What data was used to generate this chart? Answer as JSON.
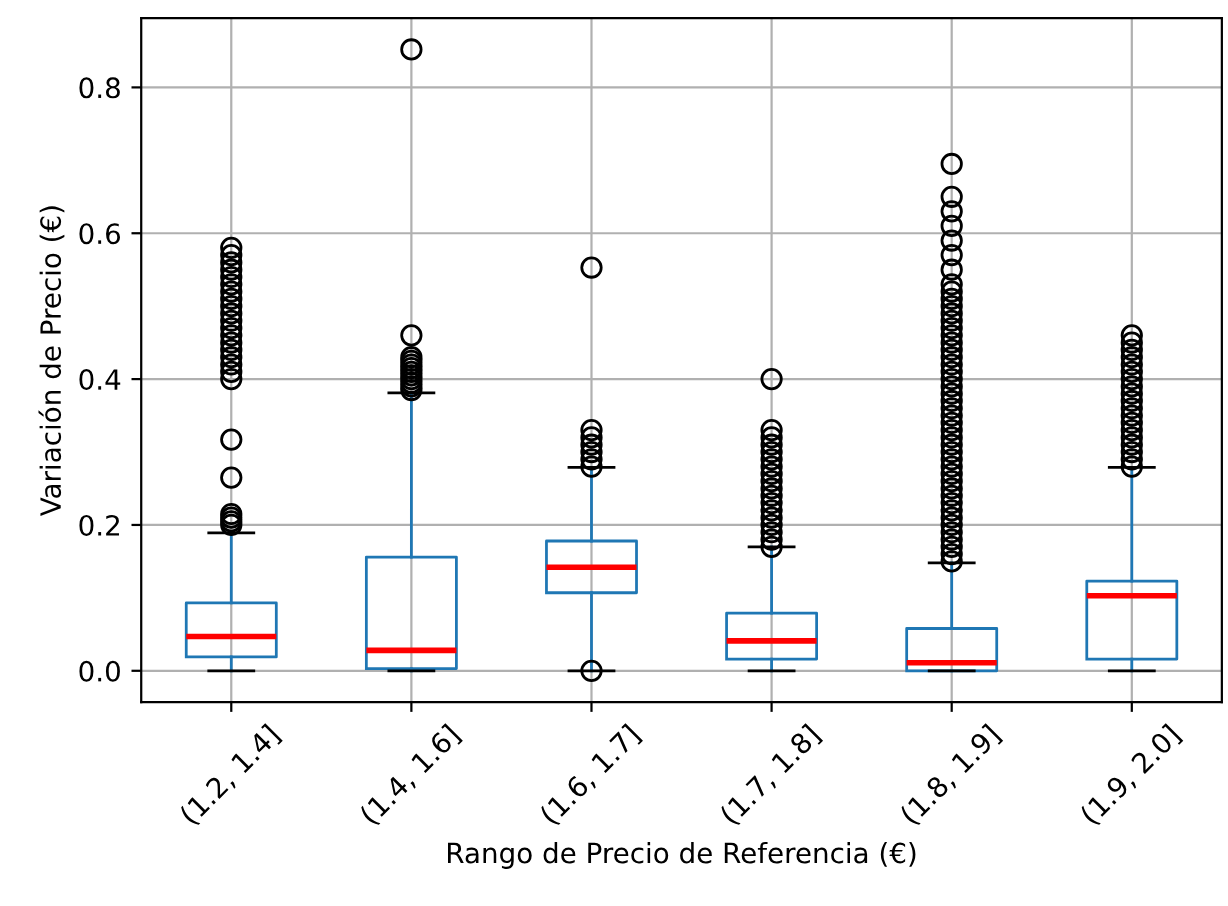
{
  "chart_data": {
    "type": "box",
    "xlabel": "Rango de Precio de Referencia (€)",
    "ylabel": "Variación de Precio (€)",
    "categories": [
      "(1.2, 1.4]",
      "(1.4, 1.6]",
      "(1.6, 1.7]",
      "(1.7, 1.8]",
      "(1.8, 1.9]",
      "(1.9, 2.0]"
    ],
    "ylim": [
      -0.043,
      0.895
    ],
    "yticks": [
      {
        "value": 0,
        "label": "0.0"
      },
      {
        "value": 0.2,
        "label": "0.2"
      },
      {
        "value": 0.4,
        "label": "0.4"
      },
      {
        "value": 0.6,
        "label": "0.6"
      },
      {
        "value": 0.8,
        "label": "0.8"
      }
    ],
    "grid": true,
    "series": [
      {
        "color": "#1f77b4",
        "boxes": [
          {
            "low": 0,
            "q1": 0.019,
            "median": 0.047,
            "q3": 0.093,
            "high": 0.189,
            "outliers": [
              0.2,
              0.205,
              0.21,
              0.215,
              0.265,
              0.317,
              0.4,
              0.41,
              0.42,
              0.43,
              0.44,
              0.45,
              0.46,
              0.47,
              0.48,
              0.49,
              0.5,
              0.51,
              0.52,
              0.53,
              0.54,
              0.55,
              0.56,
              0.57,
              0.58
            ]
          },
          {
            "low": 0,
            "q1": 0.003,
            "median": 0.028,
            "q3": 0.156,
            "high": 0.381,
            "outliers": [
              0.385,
              0.39,
              0.395,
              0.4,
              0.405,
              0.41,
              0.415,
              0.42,
              0.425,
              0.43,
              0.46,
              0.852
            ]
          },
          {
            "low": 0,
            "q1": 0.107,
            "median": 0.142,
            "q3": 0.178,
            "high": 0.279,
            "outliers": [
              0.0,
              0.28,
              0.29,
              0.3,
              0.31,
              0.32,
              0.33,
              0.553
            ]
          },
          {
            "low": 0,
            "q1": 0.016,
            "median": 0.041,
            "q3": 0.079,
            "high": 0.17,
            "outliers": [
              0.17,
              0.18,
              0.19,
              0.2,
              0.21,
              0.22,
              0.23,
              0.24,
              0.25,
              0.26,
              0.27,
              0.28,
              0.29,
              0.3,
              0.31,
              0.32,
              0.33,
              0.4
            ]
          },
          {
            "low": 0,
            "q1": 0.0,
            "median": 0.011,
            "q3": 0.058,
            "high": 0.148,
            "outliers": [
              0.15,
              0.16,
              0.17,
              0.18,
              0.19,
              0.2,
              0.21,
              0.22,
              0.23,
              0.24,
              0.25,
              0.26,
              0.27,
              0.28,
              0.29,
              0.3,
              0.31,
              0.32,
              0.33,
              0.34,
              0.35,
              0.36,
              0.37,
              0.38,
              0.39,
              0.4,
              0.41,
              0.42,
              0.43,
              0.44,
              0.45,
              0.46,
              0.47,
              0.48,
              0.49,
              0.5,
              0.51,
              0.52,
              0.53,
              0.55,
              0.57,
              0.59,
              0.61,
              0.63,
              0.65,
              0.695
            ]
          },
          {
            "low": 0,
            "q1": 0.016,
            "median": 0.103,
            "q3": 0.123,
            "high": 0.279,
            "outliers": [
              0.28,
              0.29,
              0.3,
              0.31,
              0.32,
              0.33,
              0.34,
              0.35,
              0.36,
              0.37,
              0.38,
              0.39,
              0.4,
              0.41,
              0.42,
              0.43,
              0.44,
              0.45,
              0.46
            ]
          }
        ]
      }
    ]
  }
}
